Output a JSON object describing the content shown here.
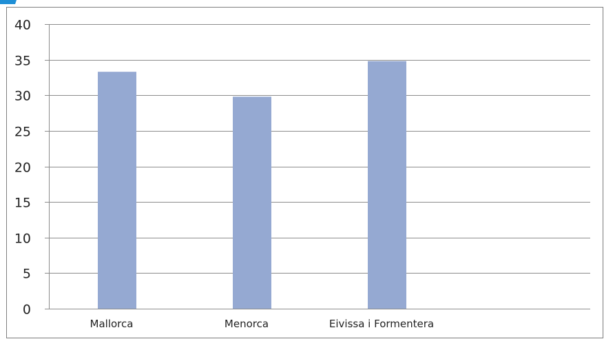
{
  "chart_data": {
    "type": "bar",
    "categories": [
      "Mallorca",
      "Menorca",
      "Eivissa i Formentera"
    ],
    "values": [
      33.3,
      29.8,
      34.8
    ],
    "title": "",
    "xlabel": "",
    "ylabel": "",
    "ylim": [
      0,
      40
    ],
    "yticks": [
      0,
      5,
      10,
      15,
      20,
      25,
      30,
      35,
      40
    ],
    "grid": true,
    "legend": "none",
    "colors": {
      "bar": "#95a9d2",
      "grid": "#8c8c8c",
      "frame": "#7f7f7f",
      "tick_text": "#222222"
    }
  }
}
